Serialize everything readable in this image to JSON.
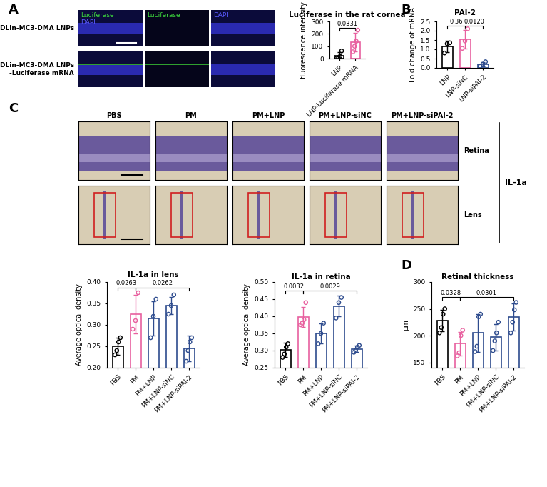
{
  "panel_labels": [
    "A",
    "B",
    "C",
    "D"
  ],
  "images": {
    "A": {
      "row_labels": [
        "DLin-MC3-DMA LNPs",
        "DLin-MC3-DMA LNPs\n-Luciferase mRNA"
      ],
      "column_labels": [
        [
          {
            "text": "Luciferase",
            "color": "#3ddc3d"
          },
          {
            "text": "DAPI",
            "color": "#5a5aff"
          }
        ],
        [
          {
            "text": "Luciferase",
            "color": "#3ddc3d"
          }
        ],
        [
          {
            "text": "DAPI",
            "color": "#5a5aff"
          }
        ]
      ]
    },
    "C": {
      "column_labels": [
        "PBS",
        "PM",
        "PM+LNP",
        "PM+LNP-siNC",
        "PM+LNP-siPAI-2"
      ],
      "row_labels": [
        "Retina",
        "Lens"
      ],
      "stain": "IL-1a"
    }
  },
  "chart_data": [
    {
      "type": "bar",
      "title": "Luciferase in the rat cornea",
      "ylabel": "fluorescence intensity",
      "categories": [
        "LNP",
        "LNP-Luciferase mRNA"
      ],
      "values": [
        25,
        130
      ],
      "errors": [
        25,
        75
      ],
      "points": [
        [
          3,
          8,
          18,
          62
        ],
        [
          55,
          100,
          140,
          230
        ]
      ],
      "colors": [
        "#000000",
        "#e8609f"
      ],
      "marker": "circle",
      "ylim": [
        0,
        300
      ],
      "yticks": [
        0,
        100,
        200,
        300
      ],
      "annotations": [
        {
          "from": 0,
          "to": 1,
          "text": "0.0331"
        }
      ]
    },
    {
      "type": "bar",
      "title": "PAI-2",
      "ylabel": "Fold change of mRNA",
      "categories": [
        "LNP",
        "LNP-siNC",
        "LNP-siPAI-2"
      ],
      "values": [
        1.15,
        1.55,
        0.2
      ],
      "errors": [
        0.3,
        0.5,
        0.12
      ],
      "points": [
        [
          0.8,
          1.3,
          1.35
        ],
        [
          1.05,
          1.45,
          2.1
        ],
        [
          0.08,
          0.2,
          0.33
        ]
      ],
      "colors": [
        "#000000",
        "#e8609f",
        "#2e4c8e"
      ],
      "marker": "circle",
      "ylim": [
        0,
        2.5
      ],
      "yticks": [
        {
          "value": 0,
          "label": "0.0"
        },
        0.5,
        {
          "value": 1,
          "label": "1.0"
        },
        1.5,
        {
          "value": 2,
          "label": "2.0"
        },
        2.5
      ],
      "annotations": [
        {
          "from": 0,
          "to": 1,
          "text": "0.36"
        },
        {
          "from": 1,
          "to": 2,
          "text": "0.0120"
        }
      ]
    },
    {
      "type": "bar",
      "title": "IL-1a in lens",
      "ylabel": "Average optical density",
      "categories": [
        "PBS",
        "PM",
        "PM+LNP",
        "PM+LNP-siNC",
        "PM+LNP-siPAI-2"
      ],
      "values": [
        0.25,
        0.325,
        0.315,
        0.345,
        0.245
      ],
      "errors": [
        0.02,
        0.045,
        0.04,
        0.02,
        0.03
      ],
      "points": [
        [
          0.23,
          0.24,
          0.26,
          0.27
        ],
        [
          0.29,
          0.31,
          0.375
        ],
        [
          0.27,
          0.32,
          0.36
        ],
        [
          0.325,
          0.345,
          0.37
        ],
        [
          0.215,
          0.24,
          0.26,
          0.27
        ]
      ],
      "colors": [
        "#000000",
        "#e8609f",
        "#2e4c8e",
        "#2e4c8e",
        "#2e4c8e"
      ],
      "marker": "circle",
      "ylim": [
        0.2,
        0.4
      ],
      "yticks": [
        {
          "value": 0.2,
          "label": "0.20"
        },
        0.25,
        {
          "value": 0.3,
          "label": "0.30"
        },
        0.35,
        {
          "value": 0.4,
          "label": "0.40"
        }
      ],
      "annotations": [
        {
          "from": 0,
          "to": 1,
          "text": "0.0263"
        },
        {
          "from": 1,
          "to": 4,
          "text": "0.0262"
        }
      ]
    },
    {
      "type": "bar",
      "title": "IL-1a in retina",
      "ylabel": "Average optical density",
      "categories": [
        "PBS",
        "PM",
        "PM+LNP",
        "PM+LNP-siNC",
        "PM+LNP-siPAI-2"
      ],
      "values": [
        0.302,
        0.398,
        0.35,
        0.43,
        0.305
      ],
      "errors": [
        0.02,
        0.03,
        0.03,
        0.03,
        0.01
      ],
      "points": [
        [
          0.28,
          0.29,
          0.31,
          0.32
        ],
        [
          0.375,
          0.38,
          0.39,
          0.44
        ],
        [
          0.32,
          0.35,
          0.38
        ],
        [
          0.395,
          0.44,
          0.455
        ],
        [
          0.295,
          0.3,
          0.31,
          0.315
        ]
      ],
      "colors": [
        "#000000",
        "#e8609f",
        "#2e4c8e",
        "#2e4c8e",
        "#2e4c8e"
      ],
      "marker": "circle",
      "ylim": [
        0.25,
        0.5
      ],
      "yticks": [
        0.25,
        {
          "value": 0.3,
          "label": "0.30"
        },
        0.35,
        {
          "value": 0.4,
          "label": "0.40"
        },
        0.45,
        {
          "value": 0.5,
          "label": "0.50"
        }
      ],
      "annotations": [
        {
          "from": 0,
          "to": 1,
          "text": "0.0032"
        },
        {
          "from": 1,
          "to": 4,
          "text": "0.0029"
        }
      ]
    },
    {
      "type": "bar",
      "title": "Retinal thickness",
      "ylabel": "μm",
      "categories": [
        "PBS",
        "PM",
        "PM+LNP",
        "PM+LNP-siNC",
        "PM+LNP-siPAI-2"
      ],
      "values": [
        228,
        185,
        205,
        197,
        235
      ],
      "errors": [
        20,
        22,
        35,
        25,
        25
      ],
      "points": [
        [
          205,
          215,
          240,
          250
        ],
        [
          162,
          168,
          200,
          210
        ],
        [
          170,
          180,
          235,
          240
        ],
        [
          172,
          190,
          205,
          225
        ],
        [
          205,
          225,
          248,
          262
        ]
      ],
      "colors": [
        "#000000",
        "#e8609f",
        "#2e4c8e",
        "#2e4c8e",
        "#2e4c8e"
      ],
      "marker": "circle",
      "ylim": [
        140,
        300
      ],
      "yticks": [
        150,
        200,
        250,
        300
      ],
      "annotations": [
        {
          "from": 0,
          "to": 1,
          "text": "0.0328"
        },
        {
          "from": 1,
          "to": 4,
          "text": "0.0301"
        }
      ]
    }
  ]
}
